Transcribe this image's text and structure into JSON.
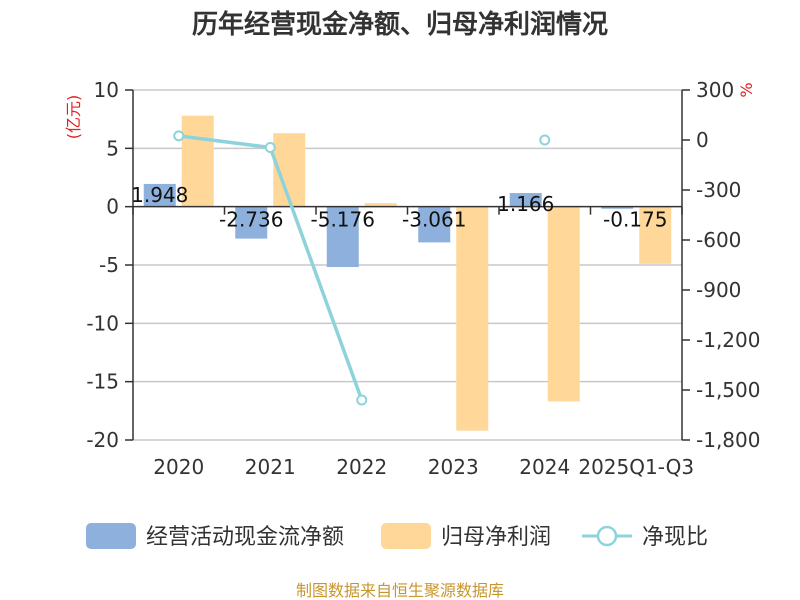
{
  "chart_data": {
    "type": "bar+line",
    "title": "历年经营现金净额、归母净利润情况",
    "categories": [
      "2020",
      "2021",
      "2022",
      "2023",
      "2024",
      "2025Q1-Q3"
    ],
    "series": [
      {
        "name": "经营活动现金流净额",
        "kind": "bar",
        "axis": "left",
        "color": "#8eb0dd",
        "values": [
          1.948,
          -2.736,
          -5.176,
          -3.061,
          1.166,
          -0.175
        ],
        "labels": [
          "1.948",
          "-2.736",
          "-5.176",
          "-3.061",
          "1.166",
          "-0.175"
        ]
      },
      {
        "name": "归母净利润",
        "kind": "bar",
        "axis": "left",
        "color": "#ffd899",
        "values": [
          7.8,
          6.3,
          0.3,
          -19.2,
          -16.7,
          -4.9
        ]
      },
      {
        "name": "净现比",
        "kind": "line",
        "axis": "right",
        "color": "#8ed3dc",
        "values": [
          25,
          -45,
          -1560,
          null,
          0,
          null
        ],
        "segments": [
          [
            0,
            1,
            2
          ]
        ],
        "isolated": [
          4
        ]
      }
    ],
    "left_axis": {
      "unit": "(亿元)",
      "min": -20,
      "max": 10,
      "ticks": [
        10,
        5,
        0,
        -5,
        -10,
        -15,
        -20
      ]
    },
    "right_axis": {
      "unit": "%",
      "min": -1800,
      "max": 300,
      "ticks": [
        300,
        0,
        -300,
        -600,
        -900,
        -1200,
        -1500,
        -1800
      ],
      "tick_labels": [
        "300",
        "0",
        "-300",
        "-600",
        "-900",
        "-1,200",
        "-1,500",
        "-1,800"
      ]
    },
    "legend": {
      "position": "bottom",
      "items": [
        {
          "label": "经营活动现金流净额",
          "type": "bar",
          "color": "#8eb0dd"
        },
        {
          "label": "归母净利润",
          "type": "bar",
          "color": "#ffd899"
        },
        {
          "label": "净现比",
          "type": "line",
          "color": "#8ed3dc"
        }
      ]
    },
    "source": "制图数据来自恒生聚源数据库"
  }
}
